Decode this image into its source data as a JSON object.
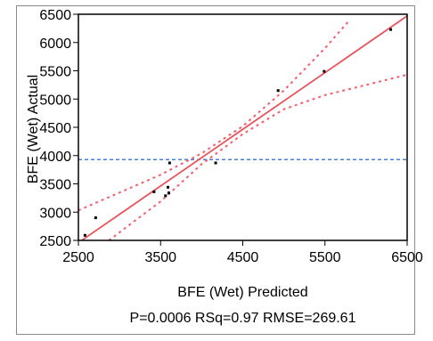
{
  "chart_data": {
    "type": "scatter",
    "xlabel": "BFE (Wet) Predicted",
    "ylabel": "BFE (Wet) Actual",
    "xlim": [
      2500,
      6500
    ],
    "ylim": [
      2500,
      6500
    ],
    "x_ticks": [
      2500,
      3500,
      4500,
      5500,
      6500
    ],
    "y_ticks": [
      2500,
      3000,
      3500,
      4000,
      4500,
      5000,
      5500,
      6000,
      6500
    ],
    "grid": false,
    "stats_text": "P=0.0006 RSq=0.97 RMSE=269.61",
    "mean_line_y": 3930,
    "fit_line": {
      "x": [
        2500,
        6500
      ],
      "y": [
        2460,
        6470
      ]
    },
    "confidence_upper": {
      "x": [
        2500,
        3500,
        4000,
        4500,
        5000,
        5500,
        5790
      ],
      "y": [
        3030,
        3660,
        4040,
        4520,
        5150,
        5900,
        6380
      ]
    },
    "confidence_lower": {
      "x": [
        2870,
        3500,
        4000,
        4500,
        5000,
        5500,
        6000,
        6500
      ],
      "y": [
        2500,
        3190,
        3850,
        4380,
        4820,
        5070,
        5250,
        5430
      ]
    },
    "points": [
      {
        "x": 2580,
        "y": 2590
      },
      {
        "x": 2710,
        "y": 2900
      },
      {
        "x": 3420,
        "y": 3360
      },
      {
        "x": 3560,
        "y": 3290
      },
      {
        "x": 3590,
        "y": 3440
      },
      {
        "x": 3600,
        "y": 3340
      },
      {
        "x": 3610,
        "y": 3870
      },
      {
        "x": 4170,
        "y": 3870
      },
      {
        "x": 4930,
        "y": 5150
      },
      {
        "x": 5490,
        "y": 5490
      },
      {
        "x": 6300,
        "y": 6230
      }
    ],
    "colors": {
      "fit": "#e8545c",
      "confidence": "#f06070",
      "mean": "#4a7fd8",
      "points": "#000000",
      "axis": "#000000"
    }
  }
}
